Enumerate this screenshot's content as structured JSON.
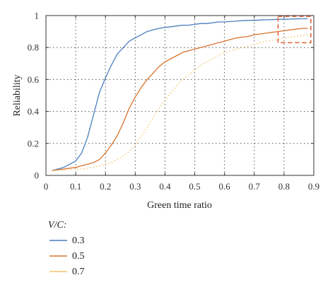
{
  "chart_data": {
    "type": "line",
    "title": "",
    "xlabel": "Green time ratio",
    "ylabel": "Reliability",
    "xlim": [
      0,
      0.9
    ],
    "ylim": [
      0,
      1
    ],
    "xticks": [
      "0",
      "0.1",
      "0.2",
      "0.3",
      "0.4",
      "0.5",
      "0.6",
      "0.7",
      "0.8",
      "0.9"
    ],
    "yticks": [
      "0",
      "0.2",
      "0.4",
      "0.6",
      "0.8",
      "1"
    ],
    "grid": true,
    "legend_placement": "below",
    "legend_title": "V/C:",
    "x": [
      0.02,
      0.04,
      0.06,
      0.08,
      0.1,
      0.12,
      0.14,
      0.16,
      0.18,
      0.2,
      0.22,
      0.24,
      0.26,
      0.28,
      0.3,
      0.32,
      0.34,
      0.36,
      0.38,
      0.4,
      0.42,
      0.44,
      0.46,
      0.48,
      0.5,
      0.52,
      0.54,
      0.56,
      0.58,
      0.6,
      0.62,
      0.64,
      0.66,
      0.68,
      0.7,
      0.72,
      0.74,
      0.76,
      0.78,
      0.8,
      0.82,
      0.84,
      0.86,
      0.88
    ],
    "series": [
      {
        "name": "0.3",
        "color": "#4a7fbf",
        "style": "solid",
        "values": [
          0.03,
          0.04,
          0.05,
          0.07,
          0.09,
          0.14,
          0.24,
          0.38,
          0.52,
          0.61,
          0.69,
          0.76,
          0.8,
          0.84,
          0.86,
          0.88,
          0.9,
          0.91,
          0.92,
          0.925,
          0.93,
          0.935,
          0.94,
          0.94,
          0.945,
          0.95,
          0.95,
          0.955,
          0.96,
          0.96,
          0.963,
          0.965,
          0.968,
          0.97,
          0.97,
          0.972,
          0.974,
          0.975,
          0.976,
          0.977,
          0.978,
          0.979,
          0.98,
          0.98
        ]
      },
      {
        "name": "0.5",
        "color": "#d9732e",
        "style": "solid",
        "values": [
          0.03,
          0.035,
          0.04,
          0.045,
          0.05,
          0.06,
          0.07,
          0.08,
          0.1,
          0.14,
          0.19,
          0.25,
          0.33,
          0.42,
          0.49,
          0.55,
          0.6,
          0.64,
          0.68,
          0.71,
          0.73,
          0.75,
          0.77,
          0.78,
          0.79,
          0.8,
          0.81,
          0.82,
          0.83,
          0.84,
          0.85,
          0.86,
          0.865,
          0.87,
          0.88,
          0.885,
          0.89,
          0.895,
          0.9,
          0.905,
          0.91,
          0.915,
          0.92,
          0.92
        ]
      },
      {
        "name": "0.7",
        "color": "#f2c46c",
        "style": "dotted",
        "values": [
          0.03,
          0.032,
          0.034,
          0.036,
          0.038,
          0.04,
          0.045,
          0.05,
          0.06,
          0.07,
          0.08,
          0.1,
          0.12,
          0.15,
          0.19,
          0.24,
          0.3,
          0.36,
          0.42,
          0.47,
          0.52,
          0.56,
          0.6,
          0.63,
          0.66,
          0.69,
          0.71,
          0.73,
          0.75,
          0.77,
          0.78,
          0.79,
          0.8,
          0.81,
          0.82,
          0.83,
          0.84,
          0.845,
          0.85,
          0.86,
          0.865,
          0.87,
          0.875,
          0.88
        ]
      }
    ],
    "annotations": [
      {
        "type": "dashed-rectangle",
        "color": "#e05a2a",
        "x_range": [
          0.78,
          0.89
        ],
        "y_range": [
          0.83,
          0.995
        ]
      }
    ]
  }
}
